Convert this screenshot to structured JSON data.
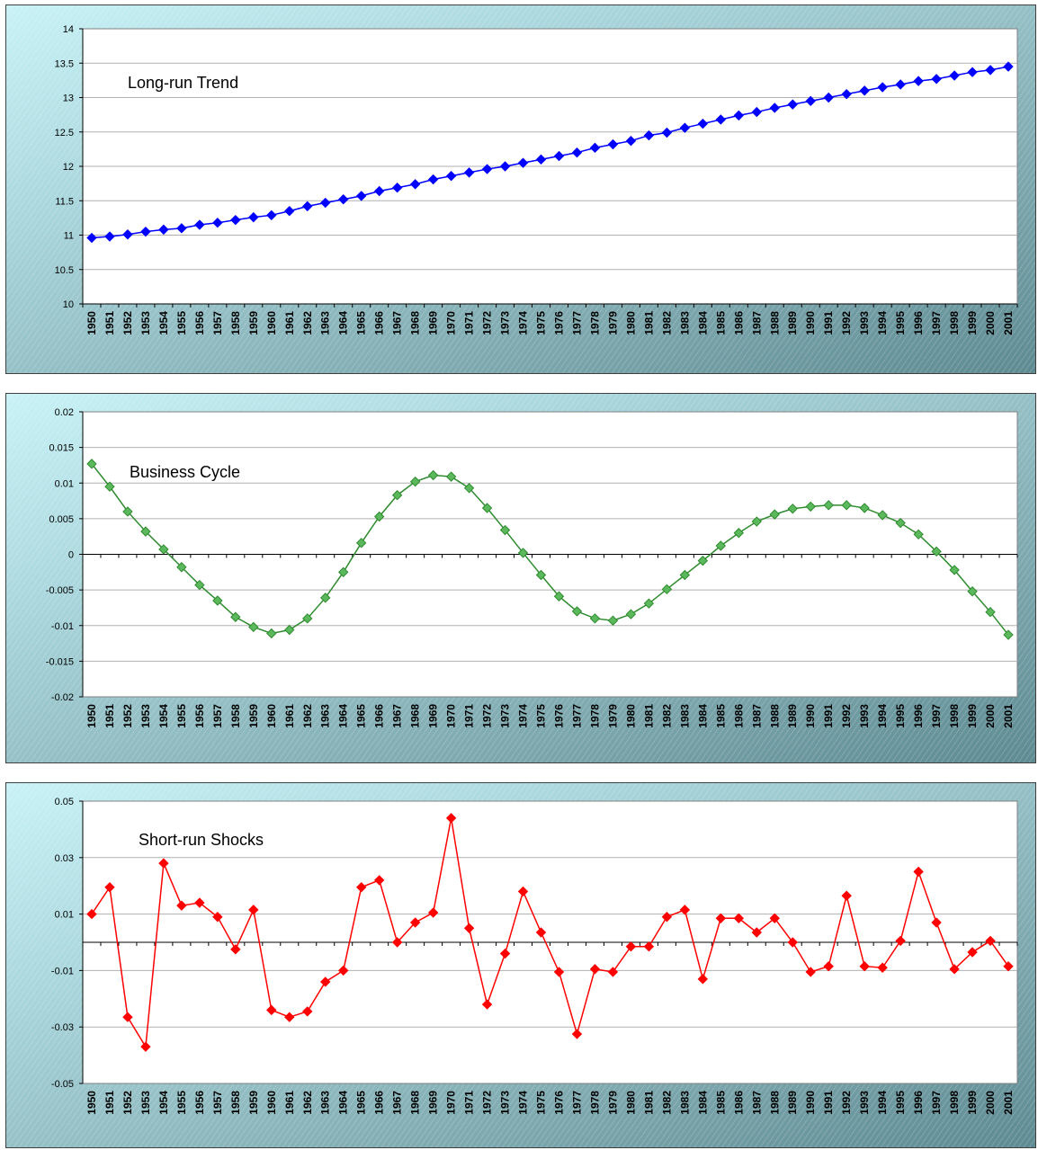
{
  "chart_data": [
    {
      "type": "line",
      "annotation": "Long-run Trend",
      "color": "#0000ff",
      "marker": "diamond",
      "ylim": [
        10,
        14
      ],
      "yticks": [
        10,
        10.5,
        11,
        11.5,
        12,
        12.5,
        13,
        13.5,
        14
      ],
      "ytick_labels": [
        "10",
        "10.5",
        "11",
        "11.5",
        "12",
        "12.5",
        "13",
        "13.5",
        "14"
      ],
      "grid": true,
      "categories": [
        "1950",
        "1951",
        "1952",
        "1953",
        "1954",
        "1955",
        "1956",
        "1957",
        "1958",
        "1959",
        "1960",
        "1961",
        "1962",
        "1963",
        "1964",
        "1965",
        "1966",
        "1967",
        "1968",
        "1969",
        "1970",
        "1971",
        "1972",
        "1973",
        "1974",
        "1975",
        "1976",
        "1977",
        "1978",
        "1979",
        "1980",
        "1981",
        "1982",
        "1983",
        "1984",
        "1985",
        "1986",
        "1987",
        "1988",
        "1989",
        "1990",
        "1991",
        "1992",
        "1993",
        "1994",
        "1995",
        "1996",
        "1997",
        "1998",
        "1999",
        "2000",
        "2001"
      ],
      "values": [
        10.96,
        10.98,
        11.01,
        11.05,
        11.08,
        11.1,
        11.15,
        11.18,
        11.22,
        11.26,
        11.29,
        11.35,
        11.42,
        11.47,
        11.52,
        11.57,
        11.64,
        11.69,
        11.74,
        11.81,
        11.86,
        11.91,
        11.96,
        12.0,
        12.05,
        12.1,
        12.15,
        12.2,
        12.27,
        12.32,
        12.37,
        12.45,
        12.49,
        12.56,
        12.62,
        12.68,
        12.74,
        12.79,
        12.85,
        12.9,
        12.95,
        13.0,
        13.05,
        13.1,
        13.15,
        13.19,
        13.24,
        13.27,
        13.32,
        13.37,
        13.4,
        13.45
      ]
    },
    {
      "type": "line",
      "annotation": "Business Cycle",
      "color": "#2e8b2e",
      "marker_fill": "#5cb85c",
      "marker": "diamond",
      "ylim": [
        -0.02,
        0.02
      ],
      "yticks": [
        -0.02,
        -0.015,
        -0.01,
        -0.005,
        0,
        0.005,
        0.01,
        0.015,
        0.02
      ],
      "ytick_labels": [
        "-0.02",
        "-0.015",
        "-0.01",
        "-0.005",
        "0",
        "0.005",
        "0.01",
        "0.015",
        "0.02"
      ],
      "grid": true,
      "categories": [
        "1950",
        "1951",
        "1952",
        "1953",
        "1954",
        "1955",
        "1956",
        "1957",
        "1958",
        "1959",
        "1960",
        "1961",
        "1962",
        "1963",
        "1964",
        "1965",
        "1966",
        "1967",
        "1968",
        "1969",
        "1970",
        "1971",
        "1972",
        "1973",
        "1974",
        "1975",
        "1976",
        "1977",
        "1978",
        "1979",
        "1980",
        "1981",
        "1982",
        "1983",
        "1984",
        "1985",
        "1986",
        "1987",
        "1988",
        "1989",
        "1990",
        "1991",
        "1992",
        "1993",
        "1994",
        "1995",
        "1996",
        "1997",
        "1998",
        "1999",
        "2000",
        "2001"
      ],
      "values": [
        0.0127,
        0.0095,
        0.006,
        0.0032,
        0.0007,
        -0.0018,
        -0.0043,
        -0.0065,
        -0.0088,
        -0.0102,
        -0.0111,
        -0.0106,
        -0.009,
        -0.0061,
        -0.0025,
        0.0016,
        0.0053,
        0.0083,
        0.0102,
        0.0111,
        0.0109,
        0.0093,
        0.0065,
        0.0034,
        0.0002,
        -0.0029,
        -0.0059,
        -0.008,
        -0.009,
        -0.0093,
        -0.0084,
        -0.0069,
        -0.0049,
        -0.0029,
        -0.0009,
        0.0012,
        0.003,
        0.0046,
        0.0056,
        0.0064,
        0.0067,
        0.0069,
        0.0069,
        0.0065,
        0.0055,
        0.0044,
        0.0028,
        0.0004,
        -0.0022,
        -0.0052,
        -0.0081,
        -0.0113
      ]
    },
    {
      "type": "line",
      "annotation": "Short-run Shocks",
      "color": "#ff0000",
      "marker": "diamond",
      "ylim": [
        -0.05,
        0.05
      ],
      "yticks": [
        -0.05,
        -0.03,
        -0.01,
        0.01,
        0.03,
        0.05
      ],
      "ytick_labels": [
        "-0.05",
        "-0.03",
        "-0.01",
        "0.01",
        "0.03",
        "0.05"
      ],
      "grid": true,
      "categories": [
        "1950",
        "1951",
        "1952",
        "1953",
        "1954",
        "1955",
        "1956",
        "1957",
        "1958",
        "1959",
        "1960",
        "1961",
        "1962",
        "1963",
        "1964",
        "1965",
        "1966",
        "1967",
        "1968",
        "1969",
        "1970",
        "1971",
        "1972",
        "1973",
        "1974",
        "1975",
        "1976",
        "1977",
        "1978",
        "1979",
        "1980",
        "1981",
        "1982",
        "1983",
        "1984",
        "1985",
        "1986",
        "1987",
        "1988",
        "1989",
        "1990",
        "1991",
        "1992",
        "1993",
        "1994",
        "1995",
        "1996",
        "1997",
        "1998",
        "1999",
        "2000",
        "2001"
      ],
      "values": [
        0.01,
        0.0195,
        -0.0265,
        -0.037,
        0.028,
        0.013,
        0.014,
        0.009,
        -0.0025,
        0.0115,
        -0.024,
        -0.0265,
        -0.0245,
        -0.014,
        -0.01,
        0.0195,
        0.022,
        0.0,
        0.007,
        0.0105,
        0.044,
        0.005,
        -0.022,
        -0.004,
        0.018,
        0.0035,
        -0.0105,
        -0.0325,
        -0.0095,
        -0.0105,
        -0.0015,
        -0.0015,
        0.009,
        0.0115,
        -0.013,
        0.0085,
        0.0085,
        0.0035,
        0.0085,
        0.0,
        -0.0105,
        -0.0085,
        0.0165,
        -0.0085,
        -0.009,
        0.0005,
        0.025,
        0.007,
        -0.0095,
        -0.0035,
        0.0005,
        -0.0085
      ]
    }
  ]
}
